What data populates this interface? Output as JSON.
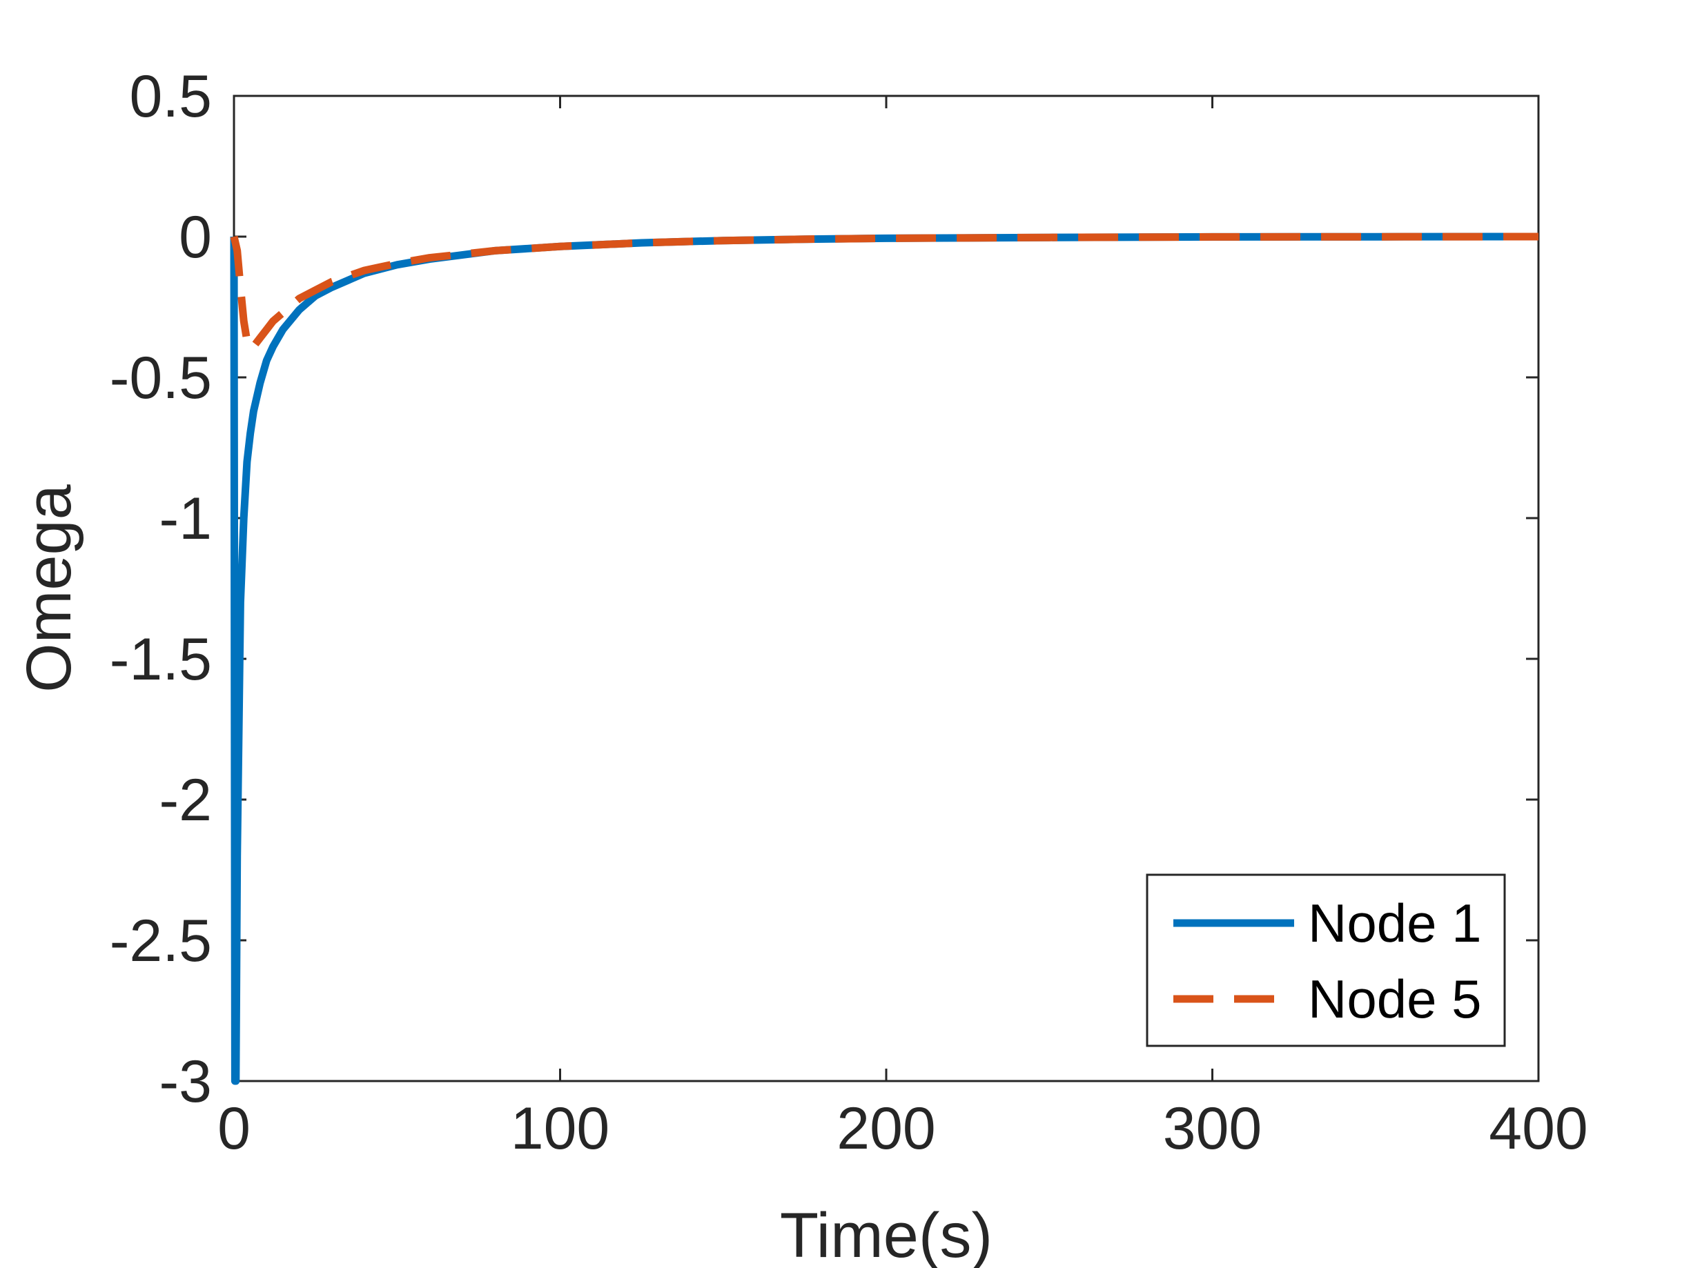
{
  "chart_data": {
    "type": "line",
    "xlabel": "Time(s)",
    "ylabel": "Omega",
    "xlim": [
      0,
      400
    ],
    "ylim": [
      -3,
      0.5
    ],
    "xticks": [
      0,
      100,
      200,
      300,
      400
    ],
    "yticks": [
      0.5,
      0,
      -0.5,
      -1,
      -1.5,
      -2,
      -2.5,
      -3
    ],
    "xtick_labels": [
      "0",
      "100",
      "200",
      "300",
      "400"
    ],
    "ytick_labels": [
      "0.5",
      "0",
      "-0.5",
      "-1",
      "-1.5",
      "-2",
      "-2.5",
      "-3"
    ],
    "grid": false,
    "legend_position": "bottom-right",
    "series": [
      {
        "name": "Node 1",
        "color": "#0072BD",
        "style": "solid",
        "x": [
          0,
          0.3,
          0.6,
          1,
          2,
          3,
          4,
          5,
          6,
          8,
          10,
          12,
          15,
          20,
          25,
          30,
          40,
          50,
          60,
          80,
          100,
          125,
          150,
          175,
          200,
          250,
          300,
          350,
          400
        ],
        "y": [
          0,
          -3,
          -3,
          -2.2,
          -1.3,
          -1.0,
          -0.8,
          -0.7,
          -0.62,
          -0.52,
          -0.44,
          -0.39,
          -0.33,
          -0.26,
          -0.21,
          -0.18,
          -0.13,
          -0.1,
          -0.08,
          -0.05,
          -0.035,
          -0.022,
          -0.014,
          -0.009,
          -0.006,
          -0.003,
          -0.001,
          -0.0005,
          0
        ]
      },
      {
        "name": "Node 5",
        "color": "#D95319",
        "style": "dashed",
        "x": [
          0,
          1,
          2,
          3,
          4,
          5,
          6,
          8,
          10,
          12,
          15,
          20,
          25,
          30,
          40,
          50,
          60,
          80,
          100,
          125,
          150,
          175,
          200,
          250,
          300,
          350,
          400
        ],
        "y": [
          0,
          -0.05,
          -0.18,
          -0.3,
          -0.37,
          -0.4,
          -0.39,
          -0.36,
          -0.33,
          -0.3,
          -0.27,
          -0.22,
          -0.19,
          -0.16,
          -0.12,
          -0.095,
          -0.075,
          -0.05,
          -0.035,
          -0.022,
          -0.014,
          -0.009,
          -0.006,
          -0.003,
          -0.001,
          -0.0005,
          0
        ]
      }
    ]
  }
}
